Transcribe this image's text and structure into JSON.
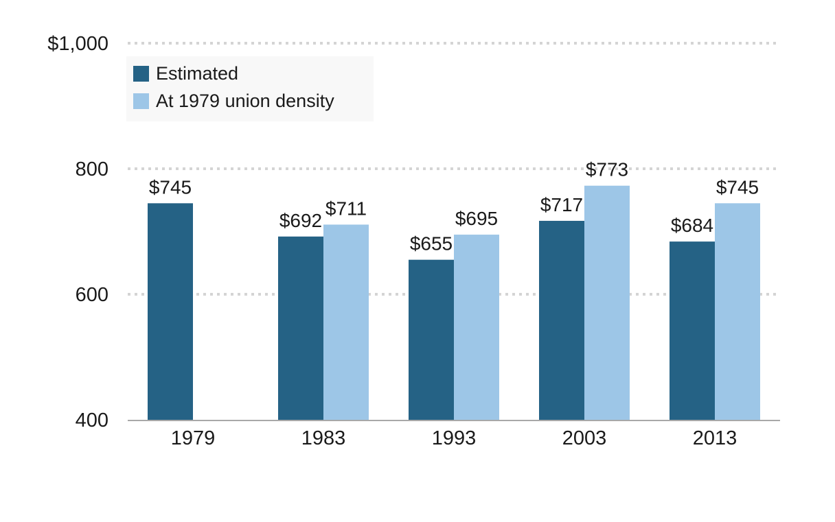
{
  "chart_data": {
    "type": "bar",
    "categories": [
      "1979",
      "1983",
      "1993",
      "2003",
      "2013"
    ],
    "series": [
      {
        "name": "Estimated",
        "color": "#256285",
        "values": [
          745,
          692,
          655,
          717,
          684
        ]
      },
      {
        "name": "At 1979 union density",
        "color": "#9dc6e7",
        "values": [
          null,
          711,
          695,
          773,
          745
        ]
      }
    ],
    "data_labels": [
      [
        "$745",
        "$692",
        "$655",
        "$717",
        "$684"
      ],
      [
        null,
        "$711",
        "$695",
        "$773",
        "$745"
      ]
    ],
    "y_ticks": [
      400,
      600,
      800,
      1000
    ],
    "y_tick_labels": [
      "400",
      "600",
      "800",
      "$1,000"
    ],
    "ylim": [
      400,
      1000
    ],
    "grid": true,
    "legend_position": "top-left"
  }
}
